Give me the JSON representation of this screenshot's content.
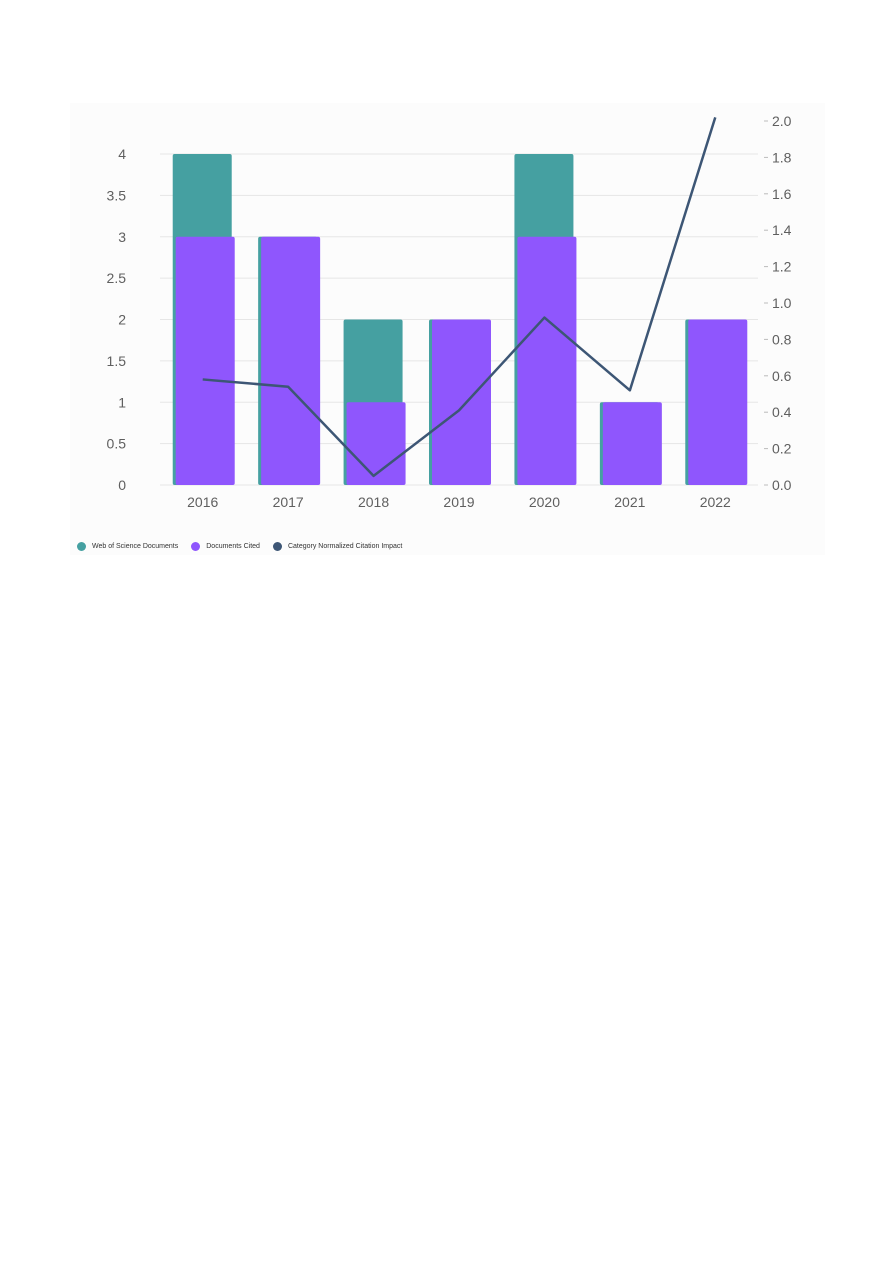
{
  "chart_data": {
    "type": "bar",
    "categories": [
      "2016",
      "2017",
      "2018",
      "2019",
      "2020",
      "2021",
      "2022"
    ],
    "series": [
      {
        "name": "Web of Science Documents",
        "type": "bar",
        "axis": "left",
        "color": "#45a0a1",
        "values": [
          4,
          3,
          2,
          2,
          4,
          1,
          2
        ]
      },
      {
        "name": "Documents Cited",
        "type": "bar",
        "axis": "left",
        "color": "#8f56fd",
        "values": [
          3,
          3,
          1,
          2,
          3,
          1,
          2
        ]
      },
      {
        "name": "Category Normalized Citation Impact",
        "type": "line",
        "axis": "right",
        "color": "#3d5675",
        "values": [
          0.58,
          0.54,
          0.05,
          0.41,
          0.92,
          0.52,
          2.02
        ]
      }
    ],
    "y_left": {
      "ylim": [
        0,
        4.4
      ],
      "ticks": [
        "0",
        "0.5",
        "1",
        "1.5",
        "2",
        "2.5",
        "3",
        "3.5",
        "4"
      ]
    },
    "y_right": {
      "ylim": [
        0,
        2.1
      ],
      "ticks": [
        "0.0",
        "0.2",
        "0.4",
        "0.6",
        "0.8",
        "1.0",
        "1.2",
        "1.4",
        "1.6",
        "1.8",
        "2.0"
      ]
    },
    "grid": true,
    "legend_position": "bottom-left"
  },
  "legend": {
    "items": [
      {
        "label": "Web of Science Documents",
        "color": "#45a0a1"
      },
      {
        "label": "Documents Cited",
        "color": "#8f56fd"
      },
      {
        "label": "Category Normalized Citation Impact",
        "color": "#3d5675"
      }
    ]
  }
}
